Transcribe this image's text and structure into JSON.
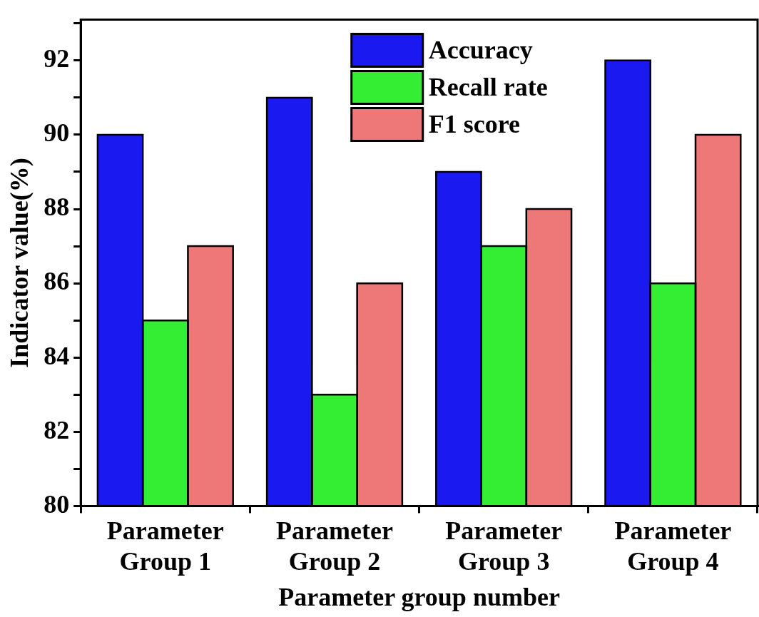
{
  "chart_data": {
    "type": "bar",
    "xlabel": "Parameter group number",
    "ylabel": "Indicator value(%)",
    "categories": [
      "Parameter Group 1",
      "Parameter Group 2",
      "Parameter Group 3",
      "Parameter Group 4"
    ],
    "series": [
      {
        "name": "Accuracy",
        "color": "#1a1af0",
        "values": [
          90,
          91,
          89,
          92
        ]
      },
      {
        "name": "Recall rate",
        "color": "#33ee33",
        "values": [
          85,
          83,
          87,
          86
        ]
      },
      {
        "name": "F1 score",
        "color": "#ee7777",
        "values": [
          87,
          86,
          88,
          90
        ]
      }
    ],
    "ylim": [
      80,
      93.1
    ],
    "yticks": [
      80,
      {
        "value": 81,
        "label": null
      },
      82,
      {
        "value": 83,
        "label": null
      },
      84,
      {
        "value": 85,
        "label": null
      },
      86,
      {
        "value": 87,
        "label": null
      },
      88,
      {
        "value": 89,
        "label": null
      },
      90,
      {
        "value": 91,
        "label": null
      },
      92,
      {
        "value": 93,
        "label": null
      }
    ],
    "grid": false,
    "legend": "top"
  }
}
